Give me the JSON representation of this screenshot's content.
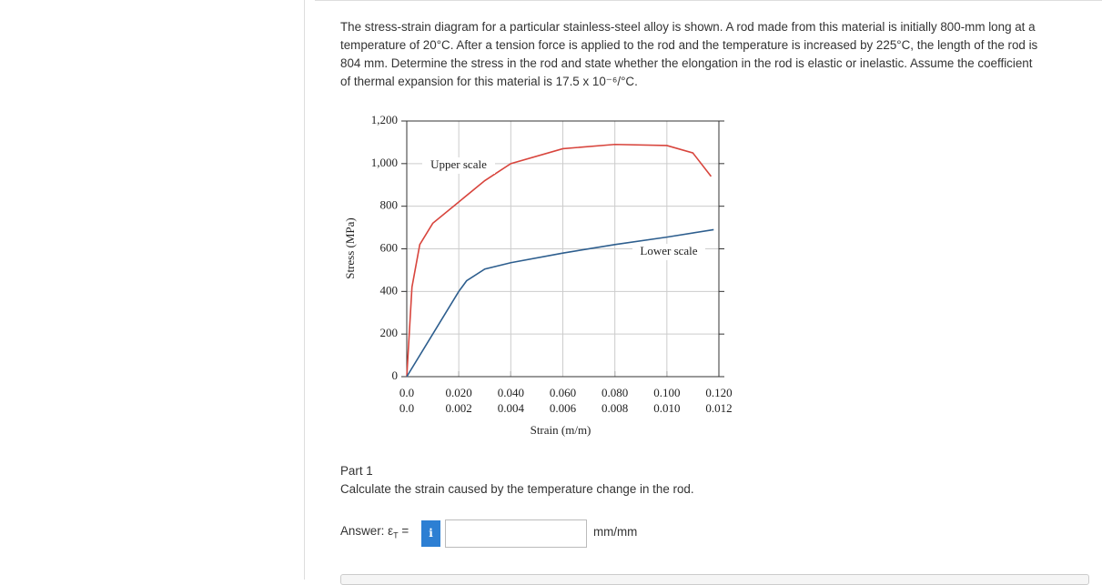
{
  "question": {
    "lines": [
      "The stress-strain diagram for a particular stainless-steel alloy is shown. A rod made from this material is initially 800-mm long at a",
      "temperature of 20°C. After a tension force is applied to the rod and the temperature is increased by 225°C, the length of the rod is",
      "804 mm. Determine the stress in the rod and state whether the elongation in the rod is elastic or inelastic. Assume the coefficient",
      "of thermal expansion for this material is 17.5 x 10⁻⁶/°C."
    ]
  },
  "chart_data": {
    "type": "line",
    "ylabel": "Stress (MPa)",
    "xlabel": "Strain (m/m)",
    "ylim": [
      0,
      1200
    ],
    "yticks": [
      0,
      200,
      {
        "value": 400,
        "label": "400"
      },
      600,
      800,
      {
        "value": 1000,
        "label": "1,000"
      },
      {
        "value": 1200,
        "label": "1,200"
      }
    ],
    "xlim": [
      0,
      0.12
    ],
    "xticks": [
      {
        "value": 0,
        "label": "0.0"
      },
      {
        "value": 0.02,
        "label": "0.020"
      },
      {
        "value": 0.04,
        "label": "0.040"
      },
      {
        "value": 0.06,
        "label": "0.060"
      },
      {
        "value": 0.08,
        "label": "0.080"
      },
      {
        "value": 0.1,
        "label": "0.100"
      },
      {
        "value": 0.12,
        "label": "0.120"
      }
    ],
    "x2lim": [
      0,
      0.012
    ],
    "x2ticks": [
      {
        "value": 0,
        "label": "0.0"
      },
      {
        "value": 0.002,
        "label": "0.002"
      },
      {
        "value": 0.004,
        "label": "0.004"
      },
      {
        "value": 0.006,
        "label": "0.006"
      },
      {
        "value": 0.008,
        "label": "0.008"
      },
      {
        "value": 0.01,
        "label": "0.010"
      },
      {
        "value": 0.012,
        "label": "0.012"
      }
    ],
    "grid": true,
    "series": [
      {
        "name": "Upper scale",
        "color": "#d8453d",
        "axis": "x",
        "x": [
          0,
          0.002,
          0.005,
          0.01,
          0.02,
          0.03,
          0.04,
          0.06,
          0.08,
          0.1,
          0.11,
          0.117
        ],
        "values": [
          0,
          420,
          620,
          720,
          820,
          920,
          1000,
          1070,
          1090,
          1085,
          1050,
          940
        ]
      },
      {
        "name": "Lower scale",
        "color": "#2d5e8e",
        "axis": "x2",
        "x": [
          0,
          0.002,
          0.0023,
          0.003,
          0.004,
          0.006,
          0.008,
          0.01,
          0.0118
        ],
        "values": [
          0,
          400,
          450,
          505,
          535,
          580,
          620,
          655,
          690
        ]
      }
    ]
  },
  "part": {
    "title": "Part 1",
    "text": "Calculate the strain caused by the temperature change in the rod."
  },
  "answer": {
    "label": "Answer:",
    "symbol": "ε",
    "subscript": "T",
    "equals": "=",
    "info": "i",
    "unit": "mm/mm"
  }
}
